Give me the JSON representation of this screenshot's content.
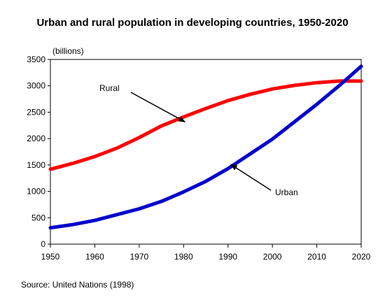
{
  "chart_data": {
    "type": "line",
    "title": "Urban and rural population in developing countries, 1950-2020",
    "ylabel": "(billions)",
    "xlabel": "",
    "x": [
      1950,
      1955,
      1960,
      1965,
      1970,
      1975,
      1980,
      1985,
      1990,
      1995,
      2000,
      2005,
      2010,
      2015,
      2020
    ],
    "xlim": [
      1950,
      2020
    ],
    "ylim": [
      0,
      3500
    ],
    "xticks": [
      "1950",
      "1960",
      "1970",
      "1980",
      "1990",
      "2000",
      "2010",
      "2020"
    ],
    "yticks": [
      "0",
      "500",
      "1000",
      "1500",
      "2000",
      "2500",
      "3000",
      "3500"
    ],
    "grid": false,
    "legend": "none",
    "series": [
      {
        "name": "Rural",
        "color": "#ff0000",
        "values": [
          1420,
          1530,
          1660,
          1820,
          2020,
          2240,
          2410,
          2570,
          2720,
          2840,
          2940,
          3010,
          3060,
          3090,
          3090
        ]
      },
      {
        "name": "Urban",
        "color": "#0000cc",
        "values": [
          310,
          370,
          450,
          560,
          670,
          810,
          990,
          1190,
          1430,
          1710,
          1990,
          2320,
          2650,
          3000,
          3370
        ]
      }
    ],
    "annotations": [
      {
        "text": "Rural",
        "series": "Rural"
      },
      {
        "text": "Urban",
        "series": "Urban"
      }
    ],
    "source": "Source:  United Nations (1998)"
  }
}
